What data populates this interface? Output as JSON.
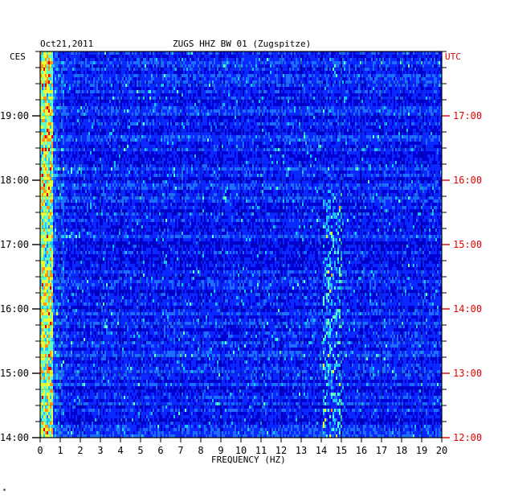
{
  "header": {
    "date": "Oct21,2011",
    "station": "ZUGS HHZ BW 01 (Zugspitze)",
    "left_tz": "CES",
    "right_tz": "UTC"
  },
  "footer": {
    "mark": "*"
  },
  "chart_data": {
    "type": "heatmap",
    "title": "ZUGS HHZ BW 01 (Zugspitze)",
    "date": "Oct21,2011",
    "xlabel": "FREQUENCY (HZ)",
    "x_ticks": [
      0,
      1,
      2,
      3,
      4,
      5,
      6,
      7,
      8,
      9,
      10,
      11,
      12,
      13,
      14,
      15,
      16,
      17,
      18,
      19,
      20
    ],
    "xlim": [
      0,
      20
    ],
    "left_axis": {
      "label": "CES",
      "ticks": [
        "19:00",
        "18:00",
        "17:00",
        "16:00",
        "15:00",
        "14:00"
      ]
    },
    "right_axis": {
      "label": "UTC",
      "ticks": [
        "17:00",
        "16:00",
        "15:00",
        "14:00",
        "13:00",
        "12:00"
      ]
    },
    "colormap": [
      "#00008c",
      "#0000d2",
      "#0a28ff",
      "#1e6eff",
      "#1ec8ff",
      "#64ffc8",
      "#e6ff3c",
      "#ff9614",
      "#e60000"
    ],
    "grid": true
  }
}
